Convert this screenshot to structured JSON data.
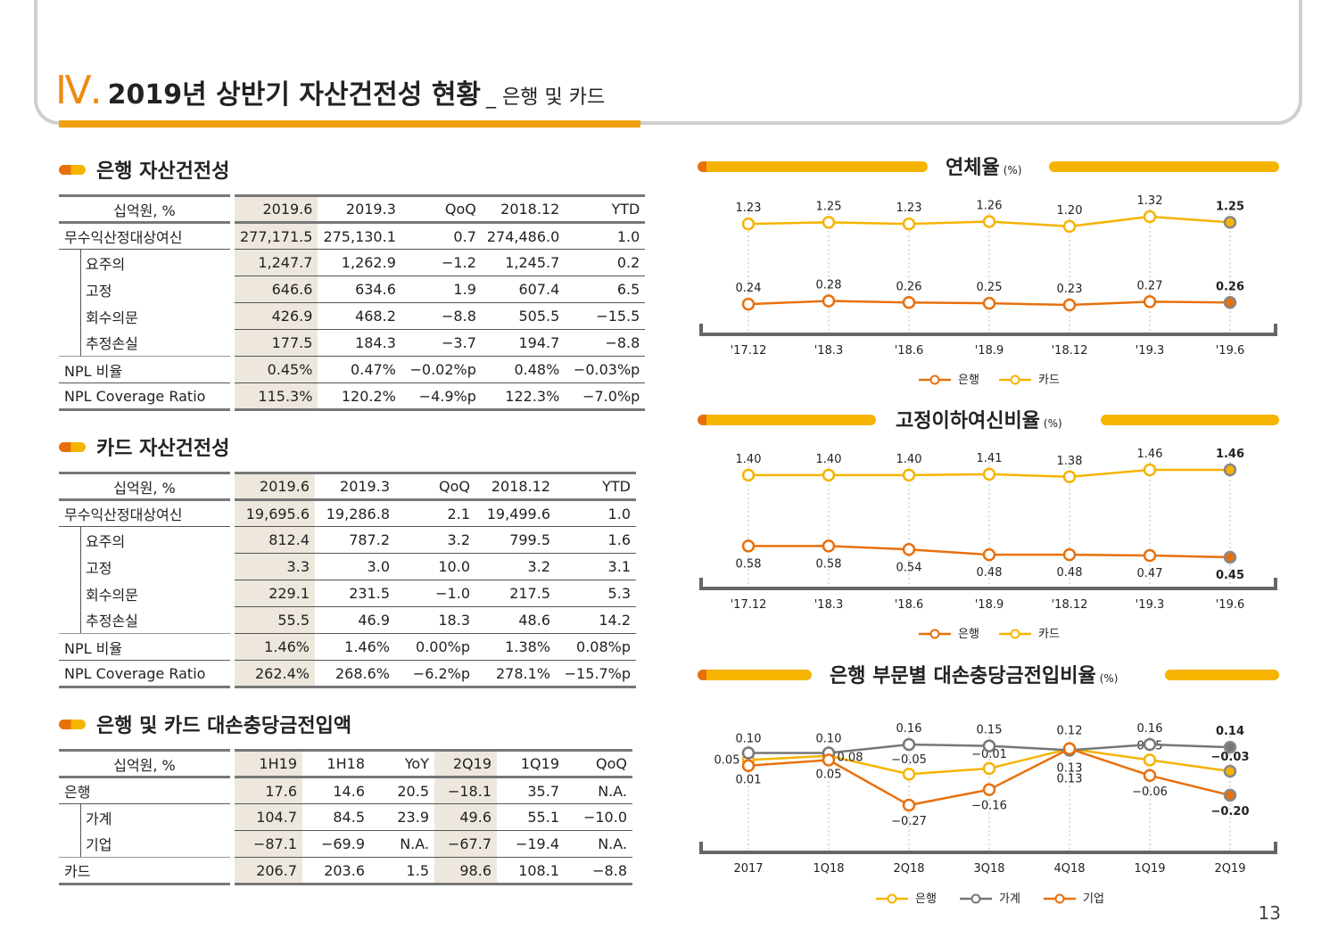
{
  "header": {
    "roman": "Ⅳ.",
    "title": "2019년 상반기 자산건전성 현황",
    "subtitle": "_ 은행 및 카드"
  },
  "bank": {
    "title": "은행 자산건전성",
    "headers": [
      "십억원, %",
      "2019.6",
      "2019.3",
      "QoQ",
      "2018.12",
      "YTD"
    ],
    "rows": [
      {
        "label": "무수익산정대상여신",
        "cells": [
          "277,171.5",
          "275,130.1",
          "0.7",
          "274,486.0",
          "1.0"
        ]
      },
      {
        "label": "요주의",
        "cells": [
          "1,247.7",
          "1,262.9",
          "-1.2",
          "1,245.7",
          "0.2"
        ]
      },
      {
        "label": "고정",
        "cells": [
          "646.6",
          "634.6",
          "1.9",
          "607.4",
          "6.5"
        ]
      },
      {
        "label": "회수의문",
        "cells": [
          "426.9",
          "468.2",
          "-8.8",
          "505.5",
          "-15.5"
        ]
      },
      {
        "label": "추정손실",
        "cells": [
          "177.5",
          "184.3",
          "-3.7",
          "194.7",
          "-8.8"
        ]
      },
      {
        "label": "NPL 비율",
        "cells": [
          "0.45%",
          "0.47%",
          "-0.02%p",
          "0.48%",
          "-0.03%p"
        ]
      },
      {
        "label": "NPL Coverage Ratio",
        "cells": [
          "115.3%",
          "120.2%",
          "-4.9%p",
          "122.3%",
          "-7.0%p"
        ]
      }
    ]
  },
  "card": {
    "title": "카드 자산건전성",
    "headers": [
      "십억원, %",
      "2019.6",
      "2019.3",
      "QoQ",
      "2018.12",
      "YTD"
    ],
    "rows": [
      {
        "label": "무수익산정대상여신",
        "cells": [
          "19,695.6",
          "19,286.8",
          "2.1",
          "19,499.6",
          "1.0"
        ]
      },
      {
        "label": "요주의",
        "cells": [
          "812.4",
          "787.2",
          "3.2",
          "799.5",
          "1.6"
        ]
      },
      {
        "label": "고정",
        "cells": [
          "3.3",
          "3.0",
          "10.0",
          "3.2",
          "3.1"
        ]
      },
      {
        "label": "회수의문",
        "cells": [
          "229.1",
          "231.5",
          "-1.0",
          "217.5",
          "5.3"
        ]
      },
      {
        "label": "추정손실",
        "cells": [
          "55.5",
          "46.9",
          "18.3",
          "48.6",
          "14.2"
        ]
      },
      {
        "label": "NPL 비율",
        "cells": [
          "1.46%",
          "1.46%",
          "0.00%p",
          "1.38%",
          "0.08%p"
        ]
      },
      {
        "label": "NPL Coverage Ratio",
        "cells": [
          "262.4%",
          "268.6%",
          "-6.2%p",
          "278.1%",
          "-15.7%p"
        ]
      }
    ]
  },
  "provision": {
    "title": "은행 및 카드 대손충당금전입액",
    "headers": [
      "십억원, %",
      "1H19",
      "1H18",
      "YoY",
      "2Q19",
      "1Q19",
      "QoQ"
    ],
    "rows": [
      {
        "label": "은행",
        "cells": [
          "17.6",
          "14.6",
          "20.5",
          "-18.1",
          "35.7",
          "N.A."
        ]
      },
      {
        "label": "가계",
        "cells": [
          "104.7",
          "84.5",
          "23.9",
          "49.6",
          "55.1",
          "-10.0"
        ]
      },
      {
        "label": "기업",
        "cells": [
          "-87.1",
          "-69.9",
          "N.A.",
          "-67.7",
          "-19.4",
          "N.A."
        ]
      },
      {
        "label": "카드",
        "cells": [
          "206.7",
          "203.6",
          "1.5",
          "98.6",
          "108.1",
          "-8.8"
        ]
      }
    ]
  },
  "chart_titles": {
    "c1": "연체율",
    "c1_unit": "(%)",
    "c2": "고정이하여신비율",
    "c2_unit": "(%)",
    "c3": "은행 부문별 대손충당금전입비율",
    "c3_unit": "(%)"
  },
  "page_number": "13",
  "chart_data": [
    {
      "type": "line",
      "title": "연체율",
      "categories": [
        "'17.12",
        "'18.3",
        "'18.6",
        "'18.9",
        "'18.12",
        "'19.3",
        "'19.6"
      ],
      "series": [
        {
          "name": "은행",
          "values": [
            0.24,
            0.28,
            0.26,
            0.25,
            0.23,
            0.27,
            0.26
          ],
          "labels": [
            "0.24",
            "0.28",
            "0.26",
            "0.25",
            "0.23",
            "0.27",
            "0.26"
          ],
          "color": "#e8700c"
        },
        {
          "name": "카드",
          "values": [
            1.23,
            1.25,
            1.23,
            1.26,
            1.2,
            1.32,
            1.25
          ],
          "labels": [
            "1.23",
            "1.25",
            "1.23",
            "1.26",
            "1.20",
            "1.32",
            "1.25"
          ],
          "color": "#f5b400"
        }
      ],
      "legend": [
        "은행",
        "카드"
      ]
    },
    {
      "type": "line",
      "title": "고정이하여신비율",
      "categories": [
        "'17.12",
        "'18.3",
        "'18.6",
        "'18.9",
        "'18.12",
        "'19.3",
        "'19.6"
      ],
      "series": [
        {
          "name": "은행",
          "values": [
            0.58,
            0.58,
            0.54,
            0.48,
            0.48,
            0.47,
            0.45
          ],
          "labels": [
            "0.58",
            "0.58",
            "0.54",
            "0.48",
            "0.48",
            "0.47",
            "0.45"
          ],
          "color": "#e8700c"
        },
        {
          "name": "카드",
          "values": [
            1.4,
            1.4,
            1.4,
            1.41,
            1.38,
            1.46,
            1.46
          ],
          "labels": [
            "1.40",
            "1.40",
            "1.40",
            "1.41",
            "1.38",
            "1.46",
            "1.46"
          ],
          "color": "#f5b400"
        }
      ],
      "legend": [
        "은행",
        "카드"
      ]
    },
    {
      "type": "line",
      "title": "은행 부문별 대손충당금전입비율",
      "categories": [
        "2017",
        "1Q18",
        "2Q18",
        "3Q18",
        "4Q18",
        "1Q19",
        "2Q19"
      ],
      "series": [
        {
          "name": "은행",
          "values": [
            0.05,
            0.08,
            -0.05,
            -0.01,
            0.13,
            0.05,
            -0.03
          ],
          "labels": [
            "0.05",
            "0.08",
            "-0.05",
            "-0.01",
            "0.13",
            "0.05",
            "-0.03"
          ],
          "color": "#f5b400"
        },
        {
          "name": "가계",
          "values": [
            0.1,
            0.1,
            0.16,
            0.15,
            0.12,
            0.16,
            0.14
          ],
          "labels": [
            "0.10",
            "0.10",
            "0.16",
            "0.15",
            "0.12",
            "0.16",
            "0.14"
          ],
          "color": "#777777"
        },
        {
          "name": "기업",
          "values": [
            0.01,
            0.05,
            -0.27,
            -0.16,
            0.13,
            -0.06,
            -0.2
          ],
          "labels": [
            "0.01",
            "0.05",
            "-0.27",
            "-0.16",
            "0.13",
            "-0.06",
            "-0.20"
          ],
          "color": "#e8700c"
        }
      ],
      "legend": [
        "은행",
        "가계",
        "기업"
      ]
    }
  ]
}
